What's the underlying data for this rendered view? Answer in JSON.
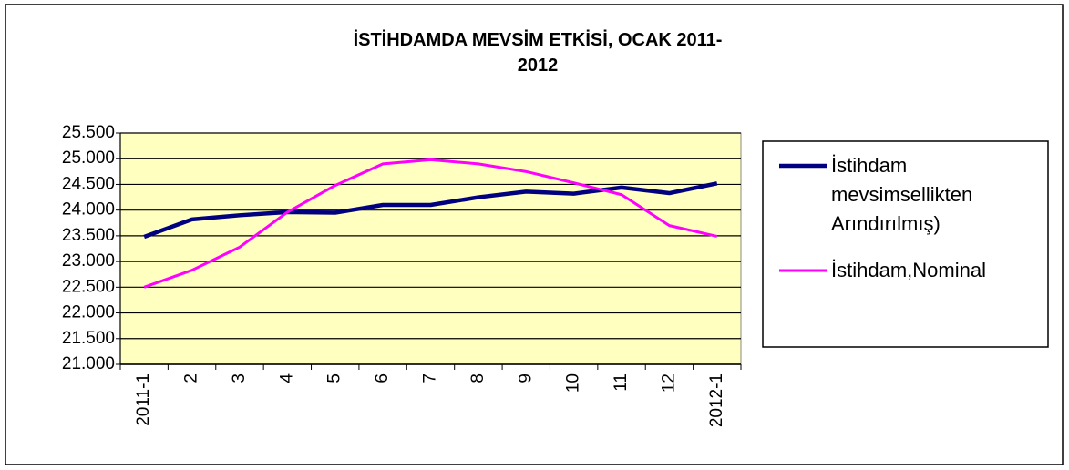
{
  "chart_data": {
    "type": "line",
    "title": "İSTİHDAMDA MEVSİM ETKİSİ, OCAK 2011-2012",
    "categories": [
      "2011-1",
      "2",
      "3",
      "4",
      "5",
      "6",
      "7",
      "8",
      "9",
      "10",
      "11",
      "12",
      "2012-1"
    ],
    "series": [
      {
        "name": "İstihdam mevsimsellikten Arındırılmış)",
        "color": "#000080",
        "values": [
          23480,
          23820,
          23900,
          23960,
          23950,
          24100,
          24100,
          24250,
          24360,
          24320,
          24440,
          24330,
          24520
        ]
      },
      {
        "name": "İstihdam,Nominal",
        "color": "#ff00ff",
        "values": [
          22500,
          22830,
          23280,
          23960,
          24480,
          24900,
          24980,
          24900,
          24750,
          24530,
          24300,
          23700,
          23490
        ]
      }
    ],
    "ylim": [
      21000,
      25500
    ],
    "yticks": [
      {
        "value": 21000,
        "label": "21.000"
      },
      {
        "value": 21500,
        "label": "21.500"
      },
      {
        "value": 22000,
        "label": "22.000"
      },
      {
        "value": 22500,
        "label": "22.500"
      },
      {
        "value": 23000,
        "label": "23.000"
      },
      {
        "value": 23500,
        "label": "23.500"
      },
      {
        "value": 24000,
        "label": "24.000"
      },
      {
        "value": 24500,
        "label": "24.500"
      },
      {
        "value": 25000,
        "label": "25.000"
      },
      {
        "value": 25500,
        "label": "25.500"
      }
    ],
    "grid": true,
    "plot_background": "#ffffc0",
    "legend": "right"
  }
}
